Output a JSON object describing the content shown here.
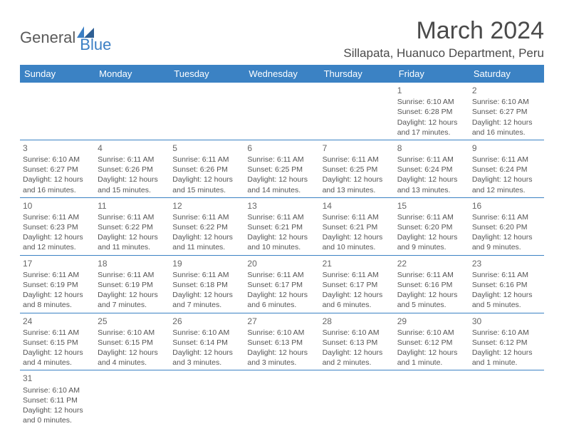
{
  "logo": {
    "text1": "General",
    "text2": "Blue"
  },
  "title": "March 2024",
  "location": "Sillapata, Huanuco Department, Peru",
  "header_bg": "#3b82c4",
  "header_fg": "#ffffff",
  "border_color": "#3b82c4",
  "days_of_week": [
    "Sunday",
    "Monday",
    "Tuesday",
    "Wednesday",
    "Thursday",
    "Friday",
    "Saturday"
  ],
  "weeks": [
    [
      null,
      null,
      null,
      null,
      null,
      {
        "n": "1",
        "sunrise": "6:10 AM",
        "sunset": "6:28 PM",
        "daylight": "12 hours and 17 minutes."
      },
      {
        "n": "2",
        "sunrise": "6:10 AM",
        "sunset": "6:27 PM",
        "daylight": "12 hours and 16 minutes."
      }
    ],
    [
      {
        "n": "3",
        "sunrise": "6:10 AM",
        "sunset": "6:27 PM",
        "daylight": "12 hours and 16 minutes."
      },
      {
        "n": "4",
        "sunrise": "6:11 AM",
        "sunset": "6:26 PM",
        "daylight": "12 hours and 15 minutes."
      },
      {
        "n": "5",
        "sunrise": "6:11 AM",
        "sunset": "6:26 PM",
        "daylight": "12 hours and 15 minutes."
      },
      {
        "n": "6",
        "sunrise": "6:11 AM",
        "sunset": "6:25 PM",
        "daylight": "12 hours and 14 minutes."
      },
      {
        "n": "7",
        "sunrise": "6:11 AM",
        "sunset": "6:25 PM",
        "daylight": "12 hours and 13 minutes."
      },
      {
        "n": "8",
        "sunrise": "6:11 AM",
        "sunset": "6:24 PM",
        "daylight": "12 hours and 13 minutes."
      },
      {
        "n": "9",
        "sunrise": "6:11 AM",
        "sunset": "6:24 PM",
        "daylight": "12 hours and 12 minutes."
      }
    ],
    [
      {
        "n": "10",
        "sunrise": "6:11 AM",
        "sunset": "6:23 PM",
        "daylight": "12 hours and 12 minutes."
      },
      {
        "n": "11",
        "sunrise": "6:11 AM",
        "sunset": "6:22 PM",
        "daylight": "12 hours and 11 minutes."
      },
      {
        "n": "12",
        "sunrise": "6:11 AM",
        "sunset": "6:22 PM",
        "daylight": "12 hours and 11 minutes."
      },
      {
        "n": "13",
        "sunrise": "6:11 AM",
        "sunset": "6:21 PM",
        "daylight": "12 hours and 10 minutes."
      },
      {
        "n": "14",
        "sunrise": "6:11 AM",
        "sunset": "6:21 PM",
        "daylight": "12 hours and 10 minutes."
      },
      {
        "n": "15",
        "sunrise": "6:11 AM",
        "sunset": "6:20 PM",
        "daylight": "12 hours and 9 minutes."
      },
      {
        "n": "16",
        "sunrise": "6:11 AM",
        "sunset": "6:20 PM",
        "daylight": "12 hours and 9 minutes."
      }
    ],
    [
      {
        "n": "17",
        "sunrise": "6:11 AM",
        "sunset": "6:19 PM",
        "daylight": "12 hours and 8 minutes."
      },
      {
        "n": "18",
        "sunrise": "6:11 AM",
        "sunset": "6:19 PM",
        "daylight": "12 hours and 7 minutes."
      },
      {
        "n": "19",
        "sunrise": "6:11 AM",
        "sunset": "6:18 PM",
        "daylight": "12 hours and 7 minutes."
      },
      {
        "n": "20",
        "sunrise": "6:11 AM",
        "sunset": "6:17 PM",
        "daylight": "12 hours and 6 minutes."
      },
      {
        "n": "21",
        "sunrise": "6:11 AM",
        "sunset": "6:17 PM",
        "daylight": "12 hours and 6 minutes."
      },
      {
        "n": "22",
        "sunrise": "6:11 AM",
        "sunset": "6:16 PM",
        "daylight": "12 hours and 5 minutes."
      },
      {
        "n": "23",
        "sunrise": "6:11 AM",
        "sunset": "6:16 PM",
        "daylight": "12 hours and 5 minutes."
      }
    ],
    [
      {
        "n": "24",
        "sunrise": "6:11 AM",
        "sunset": "6:15 PM",
        "daylight": "12 hours and 4 minutes."
      },
      {
        "n": "25",
        "sunrise": "6:10 AM",
        "sunset": "6:15 PM",
        "daylight": "12 hours and 4 minutes."
      },
      {
        "n": "26",
        "sunrise": "6:10 AM",
        "sunset": "6:14 PM",
        "daylight": "12 hours and 3 minutes."
      },
      {
        "n": "27",
        "sunrise": "6:10 AM",
        "sunset": "6:13 PM",
        "daylight": "12 hours and 3 minutes."
      },
      {
        "n": "28",
        "sunrise": "6:10 AM",
        "sunset": "6:13 PM",
        "daylight": "12 hours and 2 minutes."
      },
      {
        "n": "29",
        "sunrise": "6:10 AM",
        "sunset": "6:12 PM",
        "daylight": "12 hours and 1 minute."
      },
      {
        "n": "30",
        "sunrise": "6:10 AM",
        "sunset": "6:12 PM",
        "daylight": "12 hours and 1 minute."
      }
    ],
    [
      {
        "n": "31",
        "sunrise": "6:10 AM",
        "sunset": "6:11 PM",
        "daylight": "12 hours and 0 minutes."
      },
      null,
      null,
      null,
      null,
      null,
      null
    ]
  ],
  "labels": {
    "sunrise": "Sunrise:",
    "sunset": "Sunset:",
    "daylight": "Daylight:"
  }
}
